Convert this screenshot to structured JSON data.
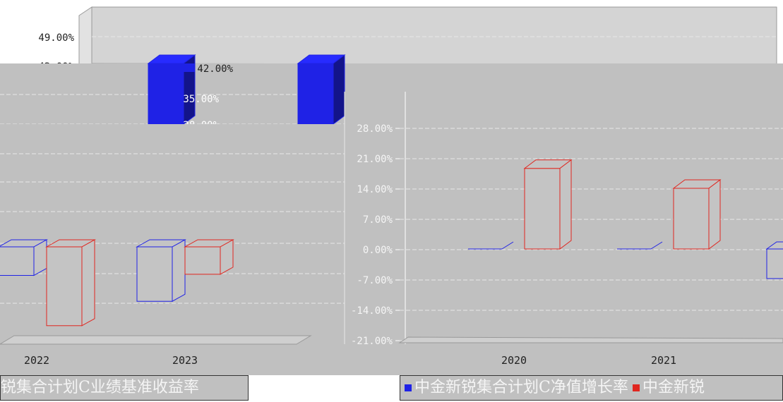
{
  "colors": {
    "background": "#c0c0c0",
    "series_blue": "#1f22e6",
    "series_red": "#e0261f",
    "grid": "#e8e8e8",
    "wall": "#d4d4d4"
  },
  "legend": {
    "left_text": "锐集合计划C业绩基准收益率",
    "item1": "中金新锐集合计划C净值增长率",
    "item2": "中金新锐"
  },
  "chart_data": [
    {
      "type": "bar",
      "panel": "back-layer",
      "categories": [
        "2022",
        "2023"
      ],
      "y_ticks": [
        "49.00%",
        "42.00%"
      ],
      "data_labels": [
        "42.00%",
        "35.00%",
        "28.00%"
      ],
      "series": [
        {
          "name": "中金新锐集合计划C净值增长率",
          "color": "#1f22e6",
          "values": [
            -7.5,
            -14.3
          ]
        },
        {
          "name": "中金新锐集合计划C业绩基准收益率",
          "color": "#e0261f",
          "values": [
            -20.7,
            -7.2
          ]
        }
      ],
      "ylim": [
        -21,
        49
      ]
    },
    {
      "type": "bar",
      "panel": "front-layer",
      "categories": [
        "2020",
        "2021"
      ],
      "y_ticks": [
        "28.00%",
        "21.00%",
        "14.00%",
        "7.00%",
        "0.00%",
        "-7.00%",
        "-14.00%",
        "-21.00%"
      ],
      "series": [
        {
          "name": "中金新锐集合计划C净值增长率",
          "color": "#1f22e6",
          "values": [
            0,
            0
          ]
        },
        {
          "name": "中金新锐集合计划C业绩基准收益率",
          "color": "#e0261f",
          "values": [
            18.6,
            14.0
          ]
        }
      ],
      "ylim": [
        -21,
        28
      ]
    }
  ]
}
